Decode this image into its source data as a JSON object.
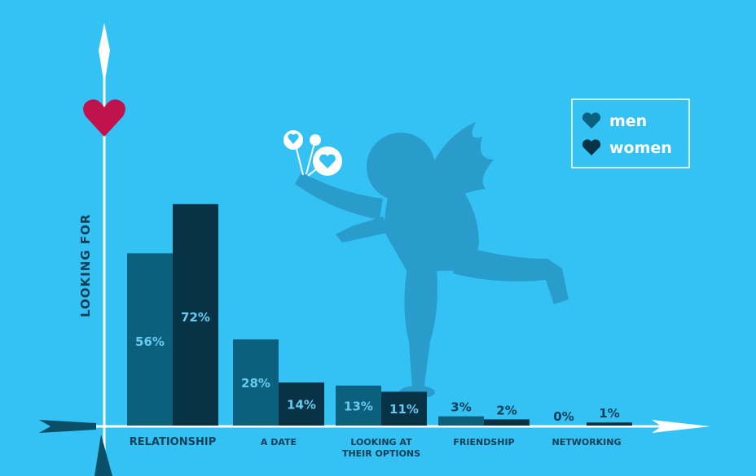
{
  "chart_data": {
    "type": "bar",
    "ylabel": "LOOKING FOR",
    "categories": [
      [
        "RELATIONSHIP"
      ],
      [
        "A DATE"
      ],
      [
        "LOOKING AT",
        "THEIR OPTIONS"
      ],
      [
        "FRIENDSHIP"
      ],
      [
        "NETWORKING"
      ]
    ],
    "series": [
      {
        "name": "men",
        "color": "#0b607d",
        "values": [
          56,
          28,
          13,
          3,
          0
        ],
        "labels": [
          "56%",
          "28%",
          "13%",
          "3%",
          "0%"
        ]
      },
      {
        "name": "women",
        "color": "#083245",
        "values": [
          72,
          14,
          11,
          2,
          1
        ],
        "labels": [
          "72%",
          "14%",
          "11%",
          "2%",
          "1%"
        ]
      }
    ],
    "ylim": [
      0,
      100
    ],
    "legend_position": "top-right",
    "colors": {
      "background": "#34c1f4",
      "heart": "#c0134e",
      "label_light": "#67cbf0",
      "label_dark": "#0f3f57",
      "cupid": "#2a9ccc"
    }
  }
}
